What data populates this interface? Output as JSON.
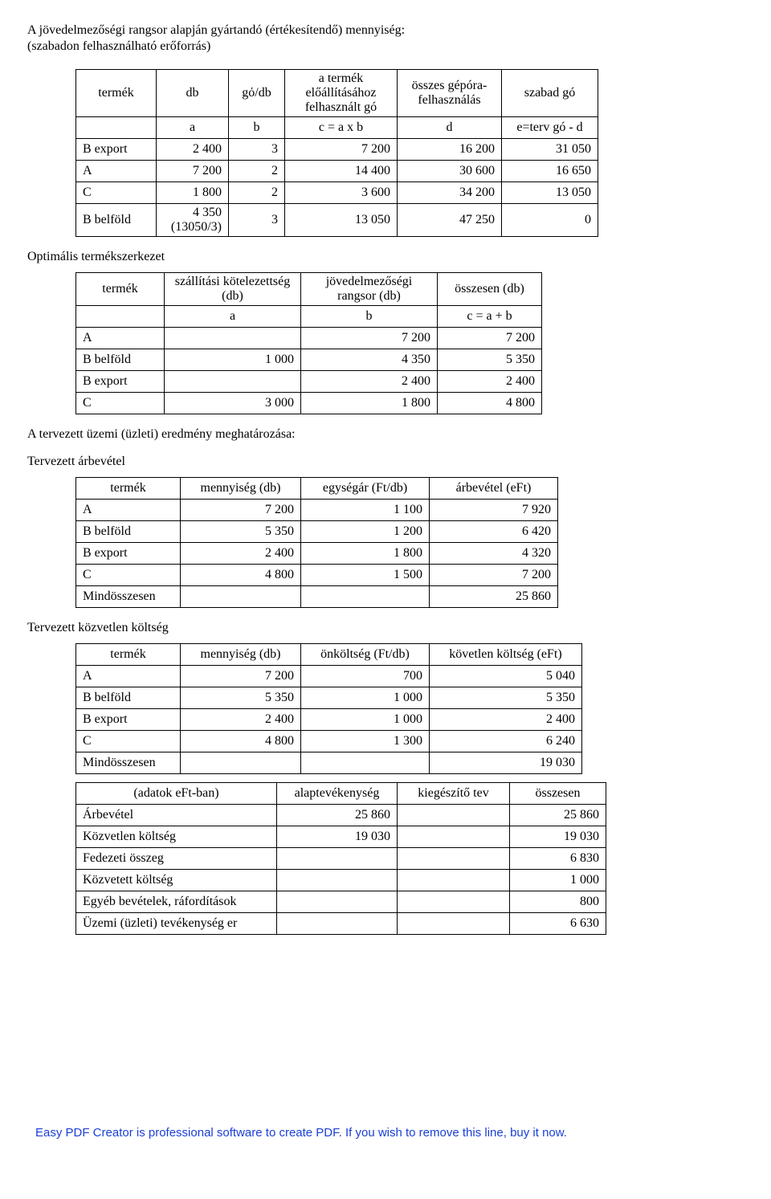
{
  "title_line1": "A jövedelmezőségi rangsor alapján gyártandó (értékesítendő) mennyiség:",
  "title_line2": "(szabadon felhasználható erőforrás)",
  "table1": {
    "headers": [
      "termék",
      "db",
      "gό/db",
      "a termék előállításához felhasznált gó",
      "összes gépóra-felhasználás",
      "szabad gó"
    ],
    "sub": [
      "",
      "a",
      "b",
      "c = a x b",
      "d",
      "e=terv gó - d"
    ],
    "rows": [
      [
        "B export",
        "2 400",
        "3",
        "7 200",
        "16 200",
        "31 050"
      ],
      [
        "A",
        "7 200",
        "2",
        "14 400",
        "30 600",
        "16 650"
      ],
      [
        "C",
        "1 800",
        "2",
        "3 600",
        "34 200",
        "13 050"
      ],
      [
        "B belföld",
        "4 350 (13050/3)",
        "3",
        "13 050",
        "47 250",
        "0"
      ]
    ],
    "widths": [
      100,
      90,
      70,
      140,
      130,
      120
    ]
  },
  "sec2": "Optimális termékszerkezet",
  "table2": {
    "headers": [
      "termék",
      "szállítási kötelezettség (db)",
      "jövedelmezőségi rangsor (db)",
      "összesen (db)"
    ],
    "sub": [
      "",
      "a",
      "b",
      "c = a + b"
    ],
    "rows": [
      [
        "A",
        "",
        "7 200",
        "7 200"
      ],
      [
        "B belföld",
        "1 000",
        "4 350",
        "5 350"
      ],
      [
        "B export",
        "",
        "2 400",
        "2 400"
      ],
      [
        "C",
        "3 000",
        "1 800",
        "4 800"
      ]
    ],
    "widths": [
      110,
      170,
      170,
      130
    ]
  },
  "sec3": "A tervezett üzemi (üzleti) eredmény meghatározása:",
  "sec4": "Tervezett árbevétel",
  "table3": {
    "headers": [
      "termék",
      "mennyiség (db)",
      "egységár (Ft/db)",
      "árbevétel (eFt)"
    ],
    "rows": [
      [
        "A",
        "7 200",
        "1 100",
        "7 920"
      ],
      [
        "B belföld",
        "5 350",
        "1 200",
        "6 420"
      ],
      [
        "B export",
        "2 400",
        "1 800",
        "4 320"
      ],
      [
        "C",
        "4 800",
        "1 500",
        "7 200"
      ],
      [
        "Mindösszesen",
        "",
        "",
        "25 860"
      ]
    ],
    "widths": [
      130,
      150,
      160,
      160
    ]
  },
  "sec5": "Tervezett közvetlen költség",
  "table4": {
    "headers": [
      "termék",
      "mennyiség (db)",
      "önköltség (Ft/db)",
      "követlen költség (eFt)"
    ],
    "rows": [
      [
        "A",
        "7 200",
        "700",
        "5 040"
      ],
      [
        "B belföld",
        "5 350",
        "1 000",
        "5 350"
      ],
      [
        "B export",
        "2 400",
        "1 000",
        "2 400"
      ],
      [
        "C",
        "4 800",
        "1 300",
        "6 240"
      ],
      [
        "Mindösszesen",
        "",
        "",
        "19 030"
      ]
    ],
    "widths": [
      130,
      150,
      160,
      190
    ]
  },
  "table5": {
    "headers": [
      "(adatok eFt-ban)",
      "alaptevékenység",
      "kiegészítő tev",
      "összesen"
    ],
    "rows": [
      [
        "Árbevétel",
        "25 860",
        "",
        "25 860"
      ],
      [
        "Közvetlen költség",
        "19 030",
        "",
        "19 030"
      ],
      [
        "Fedezeti összeg",
        "",
        "",
        "6 830"
      ],
      [
        "Közvetett költség",
        "",
        "",
        "1 000"
      ],
      [
        "Egyéb bevételek, ráfordítások",
        "",
        "",
        "800"
      ],
      [
        "Üzemi (üzleti) tevékenység er",
        "",
        "",
        "6 630"
      ]
    ],
    "widths": [
      250,
      150,
      140,
      120
    ]
  },
  "footer": "Easy PDF Creator is professional software to create PDF. If you wish to remove this line, buy it now."
}
